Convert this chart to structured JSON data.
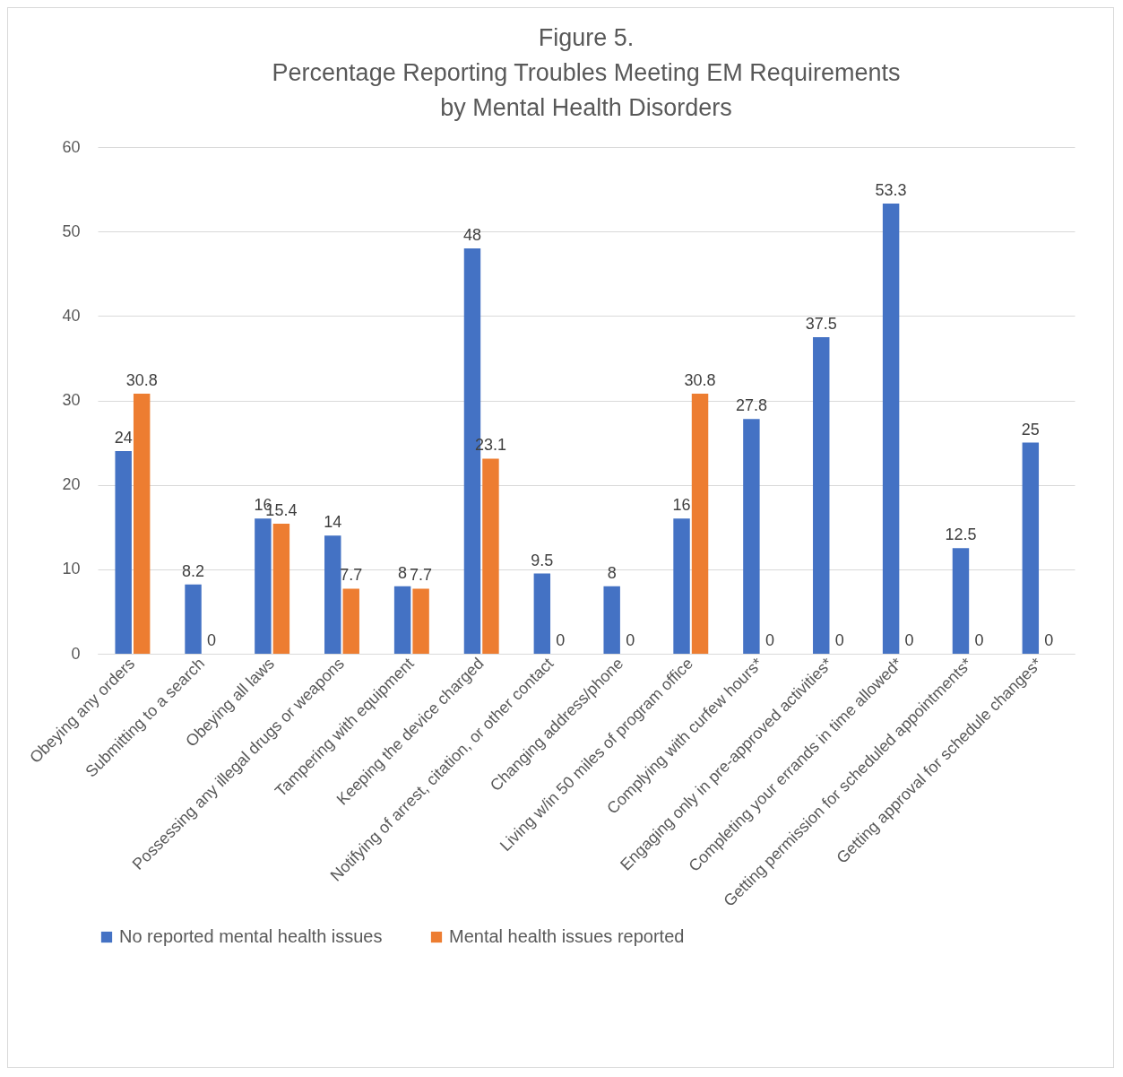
{
  "chart_data": {
    "type": "bar",
    "title": "Figure 5.\nPercentage Reporting Troubles Meeting EM Requirements\nby Mental Health Disorders",
    "categories": [
      "Obeying any orders",
      "Submitting to a search",
      "Obeying all laws",
      "Possessing any illegal drugs or weapons",
      "Tampering with equipment",
      "Keeping the device charged",
      "Notifying of arrest, citation, or other contact",
      "Changing address/phone",
      "Living w/in 50 miles of program office",
      "Complying with curfew hours*",
      "Engaging only in pre-approved activities*",
      "Completing your errands in time allowed*",
      "Getting permission for scheduled appointments*",
      "Getting approval for schedule changes*"
    ],
    "series": [
      {
        "name": "No reported mental health issues",
        "color": "#4472c4",
        "values": [
          24,
          8.2,
          16,
          14,
          8,
          48,
          9.5,
          8,
          16,
          27.8,
          37.5,
          53.3,
          12.5,
          25
        ]
      },
      {
        "name": "Mental health issues reported",
        "color": "#ed7d31",
        "values": [
          30.8,
          0,
          15.4,
          7.7,
          7.7,
          23.1,
          0,
          0,
          30.8,
          0,
          0,
          0,
          0,
          0
        ]
      }
    ],
    "ylim": [
      0,
      60
    ],
    "yticks": [
      0,
      10,
      20,
      30,
      40,
      50,
      60
    ],
    "grid": "y",
    "legend": "bottom",
    "data_labels": true
  }
}
